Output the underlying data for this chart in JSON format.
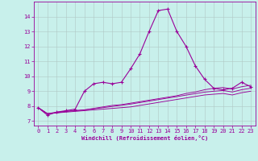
{
  "bg_color": "#c8f0eb",
  "line_color": "#990099",
  "xlabel": "Windchill (Refroidissement éolien,°C)",
  "x_ticks": [
    0,
    1,
    2,
    3,
    4,
    5,
    6,
    7,
    8,
    9,
    10,
    11,
    12,
    13,
    14,
    15,
    16,
    17,
    18,
    19,
    20,
    21,
    22,
    23
  ],
  "y_ticks": [
    7,
    8,
    9,
    10,
    11,
    12,
    13,
    14
  ],
  "ylim": [
    6.7,
    15.0
  ],
  "xlim": [
    -0.5,
    23.5
  ],
  "series1_x": [
    0,
    1,
    2,
    3,
    4,
    5,
    6,
    7,
    8,
    9,
    10,
    11,
    12,
    13,
    14,
    15,
    16,
    17,
    18,
    19,
    20,
    21,
    22,
    23
  ],
  "series1_y": [
    7.9,
    7.4,
    7.6,
    7.7,
    7.8,
    9.0,
    9.5,
    9.6,
    9.5,
    9.6,
    10.5,
    11.5,
    13.0,
    14.4,
    14.5,
    13.0,
    12.0,
    10.7,
    9.8,
    9.2,
    9.1,
    9.2,
    9.6,
    9.3
  ],
  "series2_x": [
    0,
    1,
    2,
    3,
    4,
    5,
    6,
    7,
    8,
    9,
    10,
    11,
    12,
    13,
    14,
    15,
    16,
    17,
    18,
    19,
    20,
    21,
    22,
    23
  ],
  "series2_y": [
    7.9,
    7.5,
    7.55,
    7.6,
    7.65,
    7.7,
    7.75,
    7.8,
    7.85,
    7.9,
    7.95,
    8.05,
    8.15,
    8.25,
    8.35,
    8.45,
    8.55,
    8.65,
    8.75,
    8.8,
    8.85,
    8.75,
    8.9,
    9.0
  ],
  "series3_x": [
    0,
    1,
    2,
    3,
    4,
    5,
    6,
    7,
    8,
    9,
    10,
    11,
    12,
    13,
    14,
    15,
    16,
    17,
    18,
    19,
    20,
    21,
    22,
    23
  ],
  "series3_y": [
    7.9,
    7.5,
    7.55,
    7.65,
    7.7,
    7.75,
    7.82,
    7.9,
    7.98,
    8.06,
    8.14,
    8.24,
    8.34,
    8.44,
    8.54,
    8.64,
    8.74,
    8.84,
    8.94,
    9.0,
    9.05,
    8.95,
    9.1,
    9.2
  ],
  "series4_x": [
    0,
    1,
    2,
    3,
    4,
    5,
    6,
    7,
    8,
    9,
    10,
    11,
    12,
    13,
    14,
    15,
    16,
    17,
    18,
    19,
    20,
    21,
    22,
    23
  ],
  "series4_y": [
    7.9,
    7.5,
    7.6,
    7.65,
    7.7,
    7.75,
    7.85,
    7.95,
    8.05,
    8.1,
    8.2,
    8.3,
    8.4,
    8.5,
    8.6,
    8.7,
    8.85,
    8.95,
    9.1,
    9.2,
    9.25,
    9.15,
    9.3,
    9.4
  ]
}
